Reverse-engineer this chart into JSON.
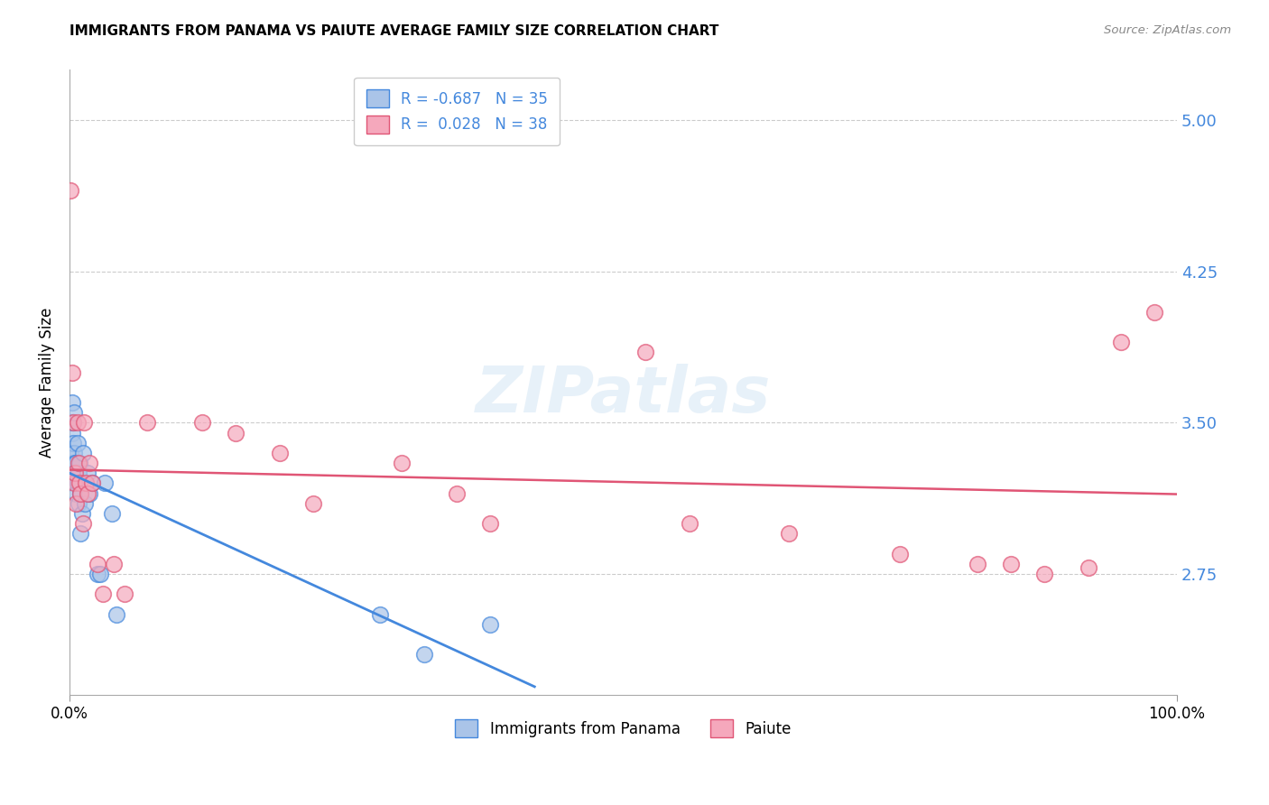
{
  "title": "IMMIGRANTS FROM PANAMA VS PAIUTE AVERAGE FAMILY SIZE CORRELATION CHART",
  "source": "Source: ZipAtlas.com",
  "ylabel": "Average Family Size",
  "legend_label1": "Immigrants from Panama",
  "legend_label2": "Paiute",
  "legend_R1": "-0.687",
  "legend_N1": "35",
  "legend_R2": "0.028",
  "legend_N2": "38",
  "xlim": [
    0.0,
    1.0
  ],
  "ylim": [
    2.15,
    5.25
  ],
  "yticks": [
    2.75,
    3.5,
    4.25,
    5.0
  ],
  "xticks": [
    0.0,
    1.0
  ],
  "xticklabels": [
    "0.0%",
    "100.0%"
  ],
  "background_color": "#ffffff",
  "grid_color": "#cccccc",
  "color_blue": "#aac4e8",
  "color_pink": "#f5a8bc",
  "line_blue": "#4488dd",
  "line_pink": "#e05575",
  "panama_x": [
    0.001,
    0.001,
    0.002,
    0.002,
    0.003,
    0.003,
    0.003,
    0.004,
    0.004,
    0.005,
    0.005,
    0.005,
    0.006,
    0.006,
    0.007,
    0.007,
    0.008,
    0.008,
    0.009,
    0.01,
    0.01,
    0.011,
    0.012,
    0.014,
    0.016,
    0.018,
    0.02,
    0.025,
    0.028,
    0.032,
    0.038,
    0.042,
    0.28,
    0.32,
    0.38
  ],
  "panama_y": [
    3.35,
    3.5,
    3.6,
    3.45,
    3.5,
    3.4,
    3.3,
    3.35,
    3.55,
    3.3,
    3.2,
    3.25,
    3.3,
    3.15,
    3.2,
    3.4,
    3.1,
    3.25,
    3.3,
    3.15,
    2.95,
    3.05,
    3.35,
    3.1,
    3.25,
    3.15,
    3.2,
    2.75,
    2.75,
    3.2,
    3.05,
    2.55,
    2.55,
    2.35,
    2.5
  ],
  "paiute_x": [
    0.001,
    0.002,
    0.003,
    0.004,
    0.005,
    0.006,
    0.007,
    0.008,
    0.009,
    0.01,
    0.012,
    0.013,
    0.015,
    0.016,
    0.018,
    0.02,
    0.025,
    0.03,
    0.04,
    0.05,
    0.07,
    0.12,
    0.15,
    0.19,
    0.22,
    0.3,
    0.35,
    0.38,
    0.52,
    0.56,
    0.65,
    0.75,
    0.82,
    0.85,
    0.88,
    0.92,
    0.95,
    0.98
  ],
  "paiute_y": [
    4.65,
    3.75,
    3.5,
    3.2,
    3.25,
    3.1,
    3.5,
    3.3,
    3.2,
    3.15,
    3.0,
    3.5,
    3.2,
    3.15,
    3.3,
    3.2,
    2.8,
    2.65,
    2.8,
    2.65,
    3.5,
    3.5,
    3.45,
    3.35,
    3.1,
    3.3,
    3.15,
    3.0,
    3.85,
    3.0,
    2.95,
    2.85,
    2.8,
    2.8,
    2.75,
    2.78,
    3.9,
    4.05
  ]
}
